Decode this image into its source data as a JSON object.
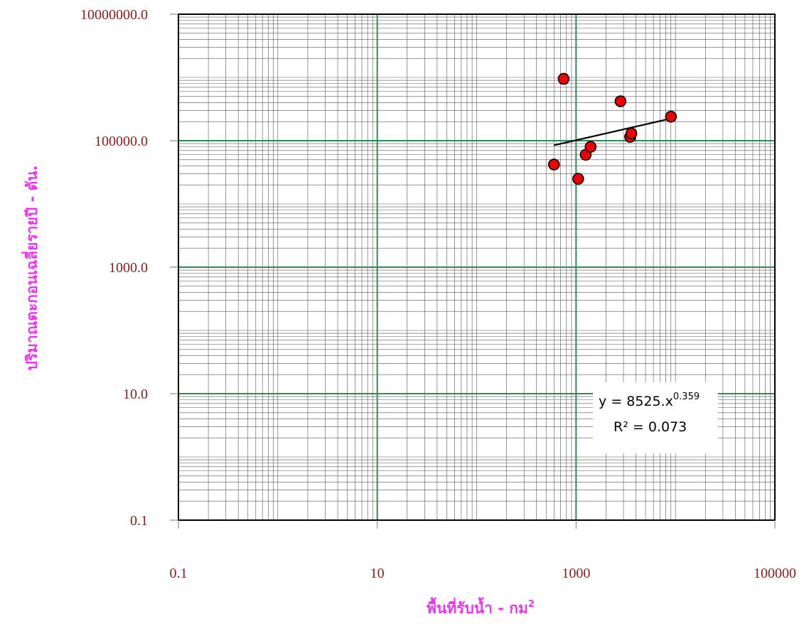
{
  "chart_data": {
    "type": "scatter",
    "title": "",
    "xlabel": "พื้นที่รับน้ำ - กม",
    "xlabel_sup": "2",
    "ylabel": "ปริมาณตะกอนเฉลี่ยรายปี - ตัน.",
    "x_scale": "log",
    "y_scale": "log",
    "xlim": [
      0.1,
      100000
    ],
    "ylim": [
      0.1,
      10000000
    ],
    "x_tick_values": [
      0.1,
      10,
      1000,
      100000
    ],
    "x_tick_labels": [
      "0.1",
      "10",
      "1000",
      "100000"
    ],
    "y_tick_values": [
      0.1,
      10,
      1000,
      100000,
      10000000
    ],
    "y_tick_labels": [
      "0.1",
      "10.0",
      "1000.0",
      "100000.0",
      "10000000.0"
    ],
    "grid": true,
    "series": [
      {
        "points": [
          {
            "x": 600,
            "y": 42000
          },
          {
            "x": 750,
            "y": 950000
          },
          {
            "x": 1050,
            "y": 25000
          },
          {
            "x": 1250,
            "y": 60000
          },
          {
            "x": 1400,
            "y": 80000
          },
          {
            "x": 2800,
            "y": 420000
          },
          {
            "x": 3500,
            "y": 115000
          },
          {
            "x": 3600,
            "y": 130000
          },
          {
            "x": 9000,
            "y": 240000
          }
        ],
        "marker_color": "#ee0000"
      }
    ],
    "trendline": {
      "type": "power",
      "x_range": [
        600,
        9000
      ],
      "coefficient": 8525,
      "exponent": 0.359
    },
    "annotations": {
      "eq_prefix": "y = 8525.x",
      "eq_exponent": "0.359",
      "r2": "R² = 0.073"
    },
    "colors": {
      "major_grid": "#2e8b57",
      "minor_grid": "#555555",
      "tick_label": "#8b1a1a",
      "axis_title": "#ee33ee",
      "marker": "#ee0000"
    }
  }
}
